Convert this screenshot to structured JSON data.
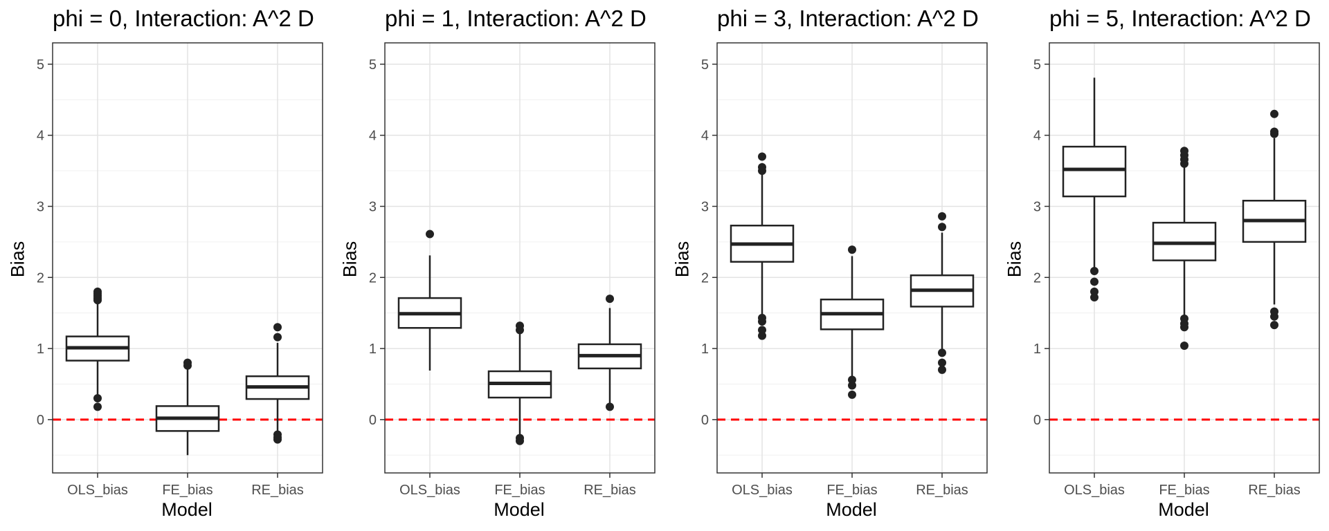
{
  "chart_data": [
    {
      "type": "box",
      "title": "phi = 0, Interaction: A^2 D",
      "xlabel": "Model",
      "ylabel": "Bias",
      "categories": [
        "OLS_bias",
        "FE_bias",
        "RE_bias"
      ],
      "ylim": [
        -0.75,
        5.3
      ],
      "yticks": [
        0,
        1,
        2,
        3,
        4,
        5
      ],
      "reference_line": {
        "y": 0,
        "color": "#ff0000",
        "style": "dashed"
      },
      "boxes": [
        {
          "category": "OLS_bias",
          "q1": 0.83,
          "median": 1.01,
          "q3": 1.17,
          "whisker_low": 0.35,
          "whisker_high": 1.66,
          "outliers": [
            0.18,
            0.3,
            1.68,
            1.71,
            1.74,
            1.77,
            1.8
          ]
        },
        {
          "category": "FE_bias",
          "q1": -0.16,
          "median": 0.02,
          "q3": 0.19,
          "whisker_low": -0.5,
          "whisker_high": 0.71,
          "outliers": [
            0.76,
            0.8
          ]
        },
        {
          "category": "RE_bias",
          "q1": 0.29,
          "median": 0.46,
          "q3": 0.61,
          "whisker_low": -0.18,
          "whisker_high": 1.08,
          "outliers": [
            -0.21,
            -0.25,
            -0.28,
            1.16,
            1.3
          ]
        }
      ],
      "grid": true,
      "theme": "bw"
    },
    {
      "type": "box",
      "title": "phi = 1, Interaction: A^2 D",
      "xlabel": "Model",
      "ylabel": "Bias",
      "categories": [
        "OLS_bias",
        "FE_bias",
        "RE_bias"
      ],
      "ylim": [
        -0.75,
        5.3
      ],
      "yticks": [
        0,
        1,
        2,
        3,
        4,
        5
      ],
      "reference_line": {
        "y": 0,
        "color": "#ff0000",
        "style": "dashed"
      },
      "boxes": [
        {
          "category": "OLS_bias",
          "q1": 1.29,
          "median": 1.49,
          "q3": 1.71,
          "whisker_low": 0.69,
          "whisker_high": 2.31,
          "outliers": [
            2.61
          ]
        },
        {
          "category": "FE_bias",
          "q1": 0.31,
          "median": 0.51,
          "q3": 0.68,
          "whisker_low": -0.22,
          "whisker_high": 1.21,
          "outliers": [
            -0.26,
            -0.3,
            1.26,
            1.32
          ]
        },
        {
          "category": "RE_bias",
          "q1": 0.72,
          "median": 0.9,
          "q3": 1.06,
          "whisker_low": 0.2,
          "whisker_high": 1.57,
          "outliers": [
            0.18,
            1.7
          ]
        }
      ],
      "grid": true,
      "theme": "bw"
    },
    {
      "type": "box",
      "title": "phi = 3, Interaction: A^2 D",
      "xlabel": "Model",
      "ylabel": "Bias",
      "categories": [
        "OLS_bias",
        "FE_bias",
        "RE_bias"
      ],
      "ylim": [
        -0.75,
        5.3
      ],
      "yticks": [
        0,
        1,
        2,
        3,
        4,
        5
      ],
      "reference_line": {
        "y": 0,
        "color": "#ff0000",
        "style": "dashed"
      },
      "boxes": [
        {
          "category": "OLS_bias",
          "q1": 2.22,
          "median": 2.47,
          "q3": 2.73,
          "whisker_low": 1.45,
          "whisker_high": 3.45,
          "outliers": [
            1.18,
            1.26,
            1.38,
            1.43,
            3.5,
            3.55,
            3.7
          ]
        },
        {
          "category": "FE_bias",
          "q1": 1.27,
          "median": 1.49,
          "q3": 1.69,
          "whisker_low": 0.6,
          "whisker_high": 2.3,
          "outliers": [
            0.35,
            0.48,
            0.56,
            2.39
          ]
        },
        {
          "category": "RE_bias",
          "q1": 1.59,
          "median": 1.82,
          "q3": 2.03,
          "whisker_low": 0.97,
          "whisker_high": 2.63,
          "outliers": [
            0.7,
            0.8,
            0.94,
            2.71,
            2.86
          ]
        }
      ],
      "grid": true,
      "theme": "bw"
    },
    {
      "type": "box",
      "title": "phi = 5, Interaction: A^2 D",
      "xlabel": "Model",
      "ylabel": "Bias",
      "categories": [
        "OLS_bias",
        "FE_bias",
        "RE_bias"
      ],
      "ylim": [
        -0.75,
        5.3
      ],
      "yticks": [
        0,
        1,
        2,
        3,
        4,
        5
      ],
      "reference_line": {
        "y": 0,
        "color": "#ff0000",
        "style": "dashed"
      },
      "boxes": [
        {
          "category": "OLS_bias",
          "q1": 3.14,
          "median": 3.52,
          "q3": 3.84,
          "whisker_low": 2.1,
          "whisker_high": 4.81,
          "outliers": [
            1.72,
            1.8,
            1.94,
            2.09
          ]
        },
        {
          "category": "FE_bias",
          "q1": 2.24,
          "median": 2.48,
          "q3": 2.77,
          "whisker_low": 1.45,
          "whisker_high": 3.55,
          "outliers": [
            1.04,
            1.3,
            1.35,
            1.42,
            3.6,
            3.66,
            3.72,
            3.78
          ]
        },
        {
          "category": "RE_bias",
          "q1": 2.5,
          "median": 2.8,
          "q3": 3.08,
          "whisker_low": 1.62,
          "whisker_high": 3.96,
          "outliers": [
            1.33,
            1.45,
            1.52,
            4.02,
            4.05,
            4.3
          ]
        }
      ],
      "grid": true,
      "theme": "bw"
    }
  ]
}
